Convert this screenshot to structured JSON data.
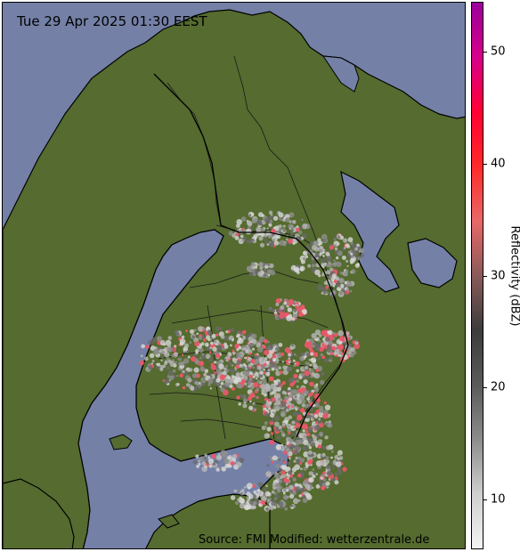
{
  "map": {
    "title": "Tue 29 Apr 2025 01:30 EEST",
    "source": "Source: FMI Modified: wetterzentrale.de",
    "water_color": "#7480a6",
    "land_color": "#556b2f",
    "border_color": "#1a1a1a",
    "echo_colors": [
      "#d8d8d8",
      "#b8b8b8",
      "#8e8e8e",
      "#6a6a6a",
      "#e8596a"
    ]
  },
  "colorbar": {
    "label": "Reflectivity (dBZ)",
    "ticks": [
      {
        "value": 10,
        "label": "10"
      },
      {
        "value": 20,
        "label": "20"
      },
      {
        "value": 30,
        "label": "30"
      },
      {
        "value": 40,
        "label": "40"
      },
      {
        "value": 50,
        "label": "50"
      }
    ],
    "range": [
      5.5,
      54.5
    ],
    "stops": [
      "#f4f4f4",
      "#cfcfcf",
      "#8c8c8c",
      "#5a5a5a",
      "#3c3c3c",
      "#8b5a5a",
      "#e86868",
      "#ff2a2a",
      "#ff0033",
      "#d6008a",
      "#9a009a"
    ]
  }
}
